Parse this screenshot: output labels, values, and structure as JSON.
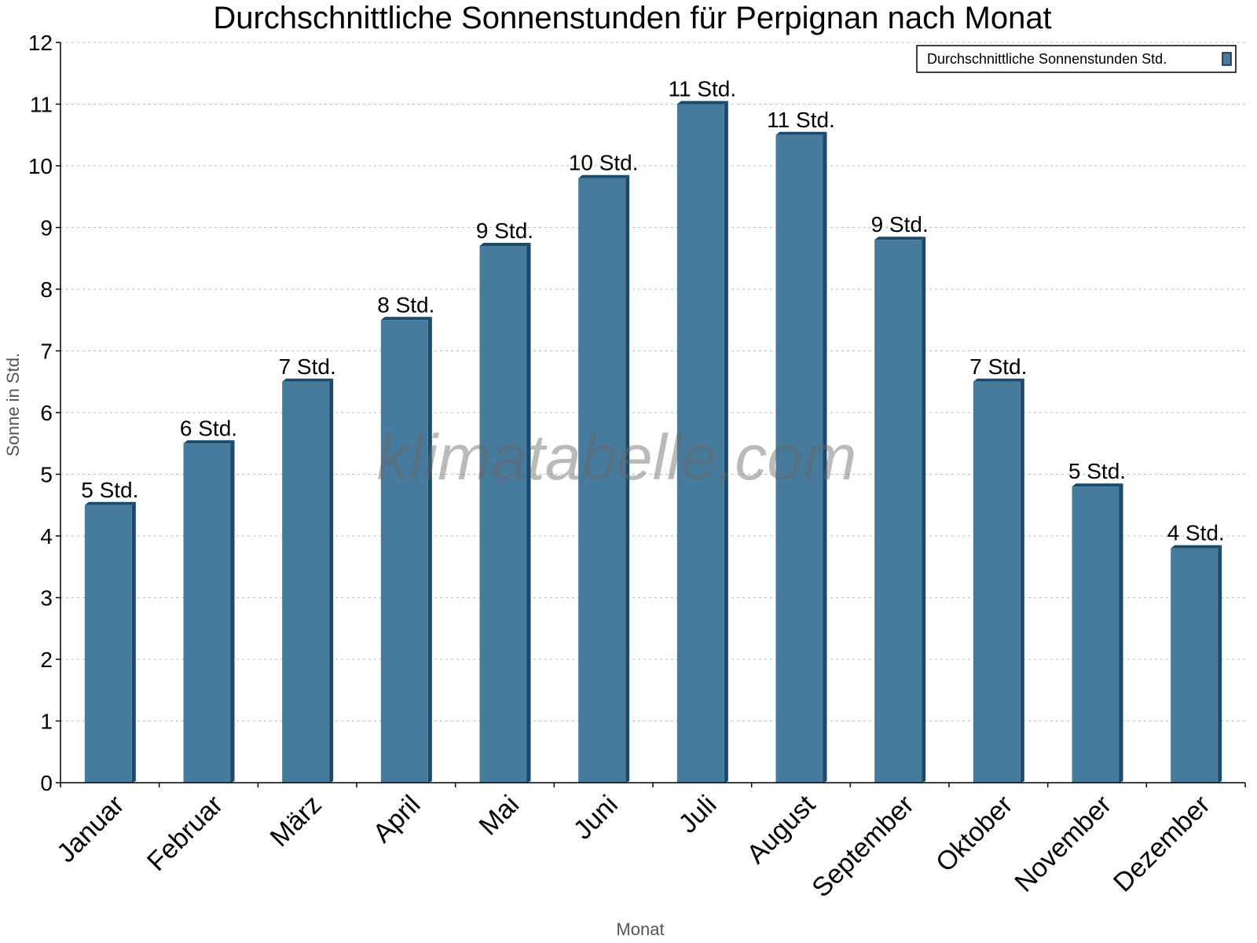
{
  "chart_data": {
    "type": "bar",
    "title": "Durchschnittliche Sonnenstunden für Perpignan nach Monat",
    "xlabel": "Monat",
    "ylabel": "Sonne in Std.",
    "ylim": [
      0,
      12
    ],
    "yticks": [
      "0",
      "1",
      "2",
      "3",
      "4",
      "5",
      "6",
      "7",
      "8",
      "9",
      "10",
      "11",
      "12"
    ],
    "grid": true,
    "legend_position": "top-right",
    "categories": [
      "Januar",
      "Februar",
      "März",
      "April",
      "Mai",
      "Juni",
      "Juli",
      "August",
      "September",
      "Oktober",
      "November",
      "Dezember"
    ],
    "series": [
      {
        "name": "Durchschnittliche Sonnenstunden Std.",
        "color": "#467b9e",
        "values": [
          4.5,
          5.5,
          6.5,
          7.5,
          8.7,
          9.8,
          11.0,
          10.5,
          8.8,
          6.5,
          4.8,
          3.8
        ],
        "data_labels": [
          "5 Std.",
          "6 Std.",
          "7 Std.",
          "8 Std.",
          "9 Std.",
          "10 Std.",
          "11 Std.",
          "11 Std.",
          "9 Std.",
          "7 Std.",
          "5 Std.",
          "4 Std."
        ]
      }
    ],
    "watermark": "klimatabelle.com"
  }
}
